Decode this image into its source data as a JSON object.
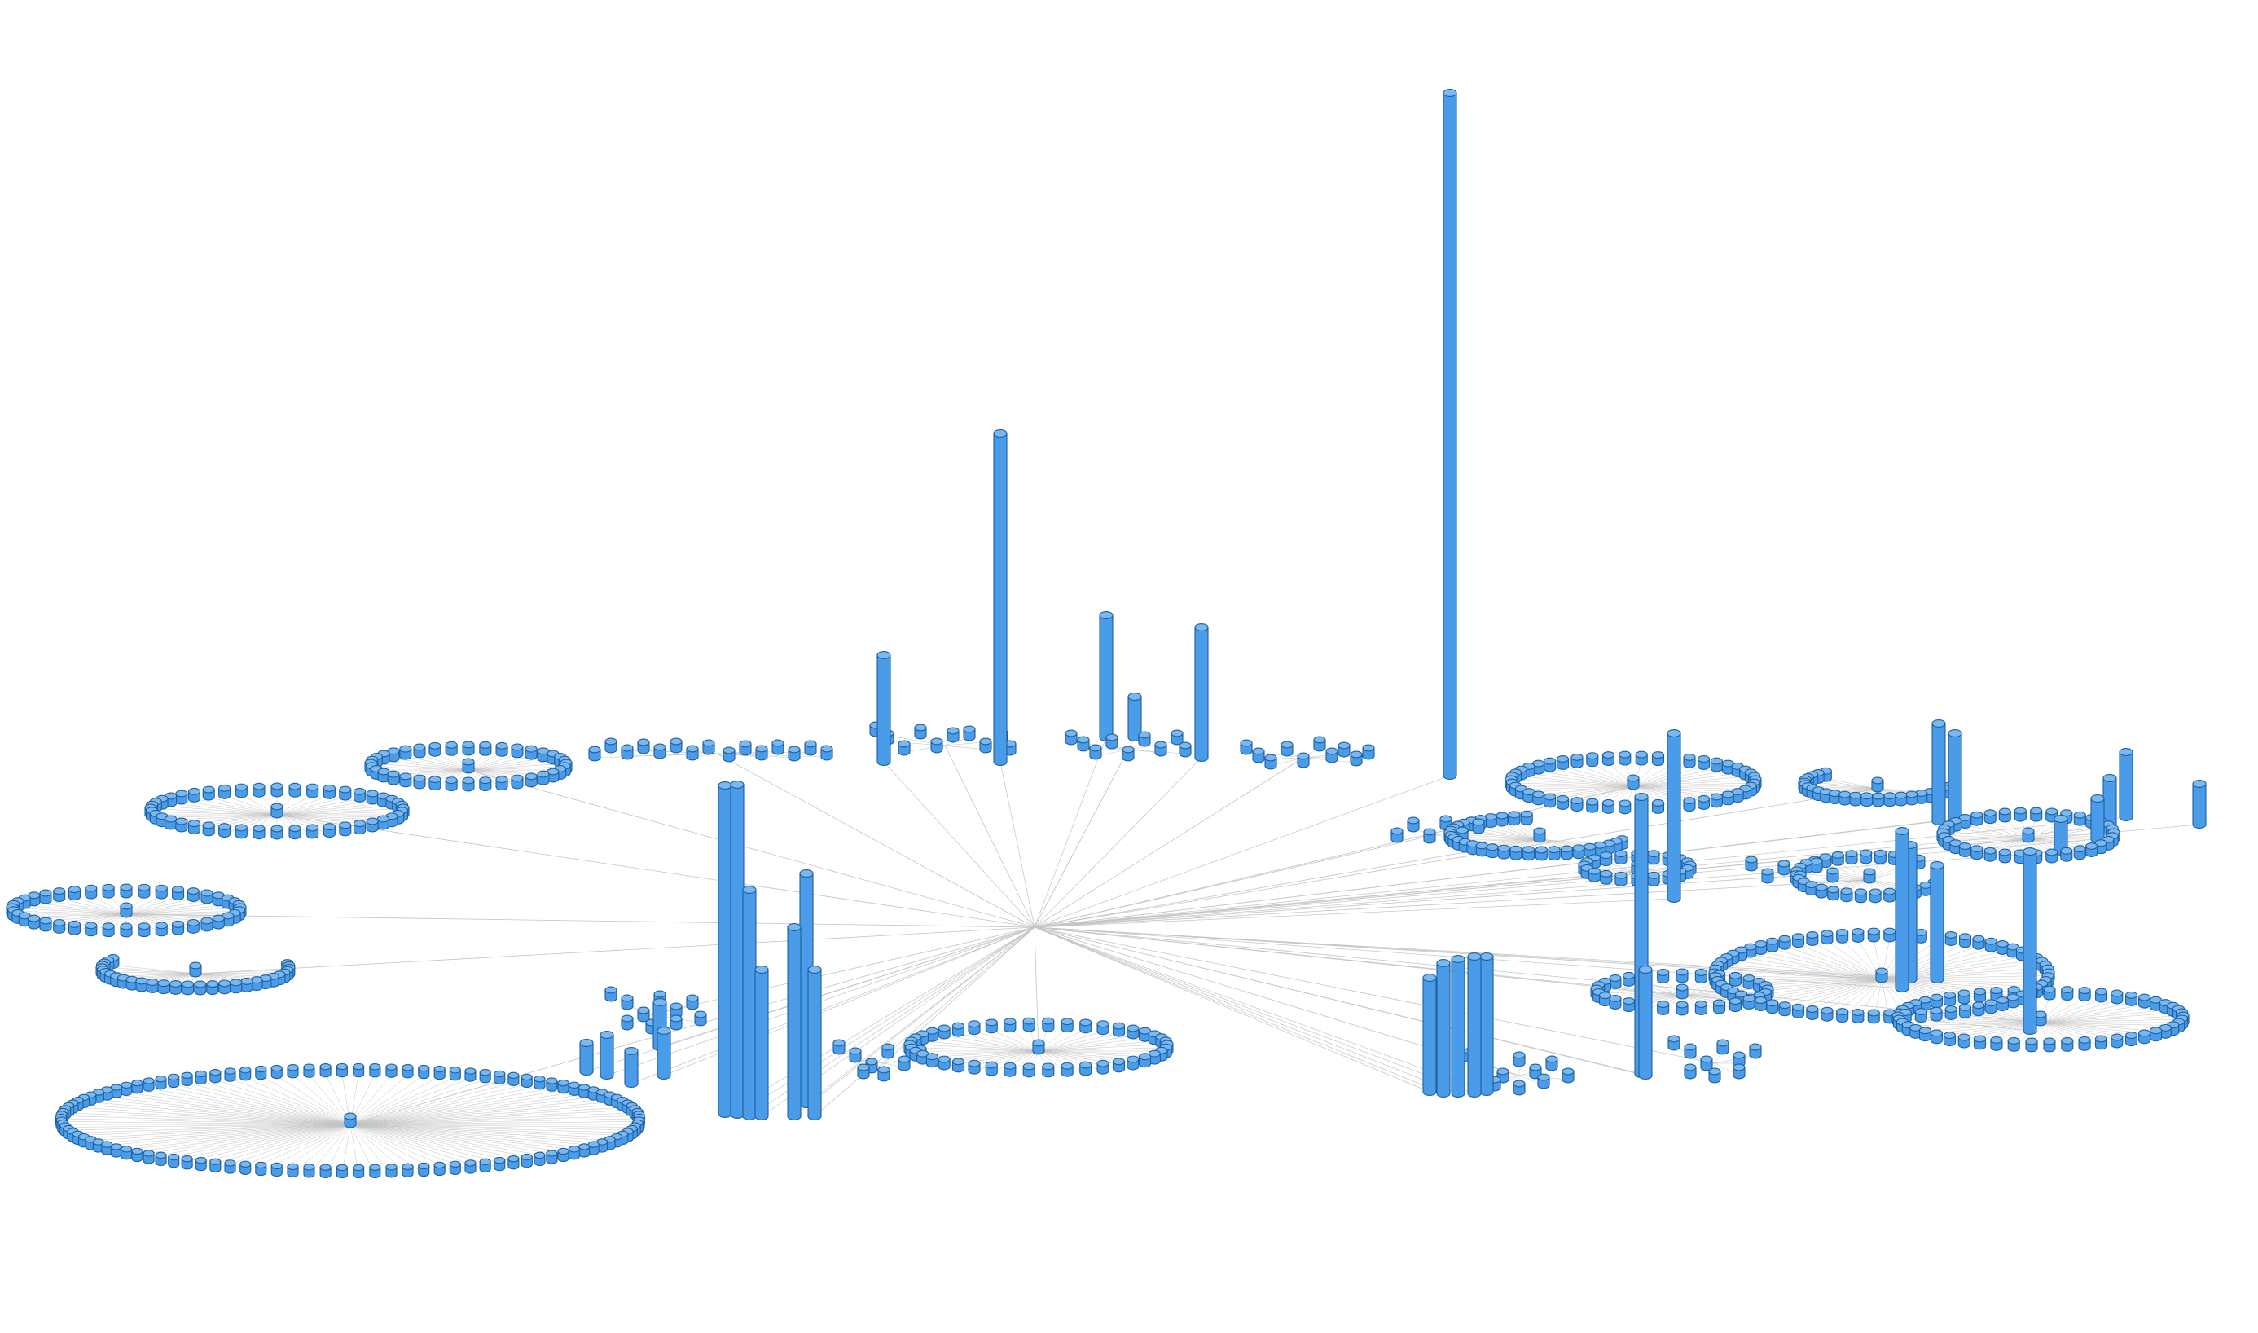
{
  "diagram": {
    "type": "3d-radial-tree",
    "colors": {
      "background": "#ffffff",
      "node_side": "#4a9be8",
      "node_top": "#7ab8f2",
      "node_outline": "#1f5f9e",
      "edge": "#c4c4c4"
    },
    "bar_heights": {
      "tallest": 838,
      "tall": 403,
      "medium": 302,
      "small": 131
    }
  }
}
